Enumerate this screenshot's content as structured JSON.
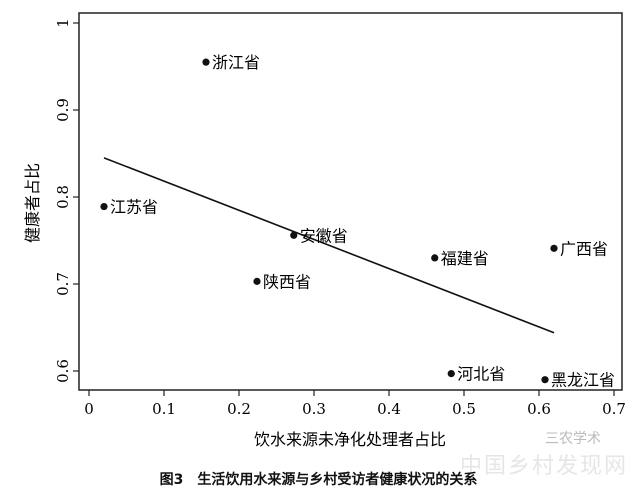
{
  "chart_data": {
    "type": "scatter",
    "title": "",
    "caption": "图3　生活饮用水来源与乡村受访者健康状况的关系",
    "xlabel": "饮水来源未净化处理者占比",
    "ylabel": "健康者占比",
    "xlim": [
      -0.005,
      0.71
    ],
    "ylim": [
      0.575,
      1.015
    ],
    "xticks": [
      "0",
      "0.1",
      "0.2",
      "0.3",
      "0.4",
      "0.5",
      "0.6",
      "0.7"
    ],
    "yticks": [
      "0.6",
      "0.7",
      "0.8",
      "0.9",
      "1"
    ],
    "grid": false,
    "legend": null,
    "points": [
      {
        "label": "浙江省",
        "x": 0.156,
        "y": 0.955
      },
      {
        "label": "江苏省",
        "x": 0.02,
        "y": 0.789
      },
      {
        "label": "安徽省",
        "x": 0.273,
        "y": 0.756
      },
      {
        "label": "陕西省",
        "x": 0.224,
        "y": 0.703
      },
      {
        "label": "福建省",
        "x": 0.461,
        "y": 0.73
      },
      {
        "label": "广西省",
        "x": 0.62,
        "y": 0.741
      },
      {
        "label": "河北省",
        "x": 0.483,
        "y": 0.597
      },
      {
        "label": "黑龙江省",
        "x": 0.608,
        "y": 0.59
      }
    ],
    "trendline": {
      "x": [
        0.02,
        0.62
      ],
      "y": [
        0.845,
        0.644
      ]
    }
  },
  "watermark": {
    "line1": "三农学术",
    "line2": "中国乡村发现网"
  }
}
